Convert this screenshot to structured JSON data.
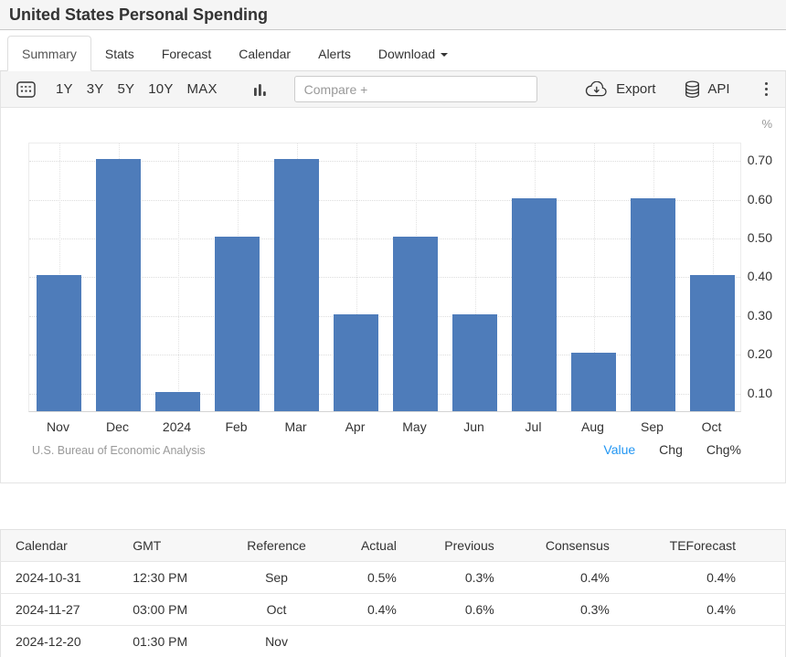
{
  "title": "United States Personal Spending",
  "tabs": [
    {
      "label": "Summary",
      "active": true
    },
    {
      "label": "Stats"
    },
    {
      "label": "Forecast"
    },
    {
      "label": "Calendar"
    },
    {
      "label": "Alerts"
    },
    {
      "label": "Download",
      "caret": true
    }
  ],
  "toolbar": {
    "ranges": [
      "1Y",
      "3Y",
      "5Y",
      "10Y",
      "MAX"
    ],
    "compare_placeholder": "Compare +",
    "export_label": "Export",
    "api_label": "API"
  },
  "chart_data": {
    "type": "bar",
    "title": "United States Personal Spending",
    "unit": "%",
    "categories": [
      "Nov",
      "Dec",
      "2024",
      "Feb",
      "Mar",
      "Apr",
      "May",
      "Jun",
      "Jul",
      "Aug",
      "Sep",
      "Oct"
    ],
    "values": [
      0.4,
      0.7,
      0.1,
      0.5,
      0.7,
      0.3,
      0.5,
      0.3,
      0.6,
      0.2,
      0.6,
      0.4
    ],
    "yticks": [
      0.1,
      0.2,
      0.3,
      0.4,
      0.5,
      0.6,
      0.7
    ],
    "ylim": [
      0.05,
      0.745
    ],
    "bar_color": "#4e7cba",
    "grid": true,
    "legend": "none",
    "source": "U.S. Bureau of Economic Analysis",
    "active_mode_color": "#2196f3",
    "modes": [
      {
        "label": "Value",
        "active": true
      },
      {
        "label": "Chg"
      },
      {
        "label": "Chg%"
      }
    ]
  },
  "table": {
    "headers": [
      "Calendar",
      "GMT",
      "Reference",
      "Actual",
      "Previous",
      "Consensus",
      "TEForecast"
    ],
    "rows": [
      [
        "2024-10-31",
        "12:30 PM",
        "Sep",
        "0.5%",
        "0.3%",
        "0.4%",
        "0.4%"
      ],
      [
        "2024-11-27",
        "03:00 PM",
        "Oct",
        "0.4%",
        "0.6%",
        "0.3%",
        "0.4%"
      ],
      [
        "2024-12-20",
        "01:30 PM",
        "Nov",
        "",
        "",
        "",
        ""
      ]
    ]
  }
}
